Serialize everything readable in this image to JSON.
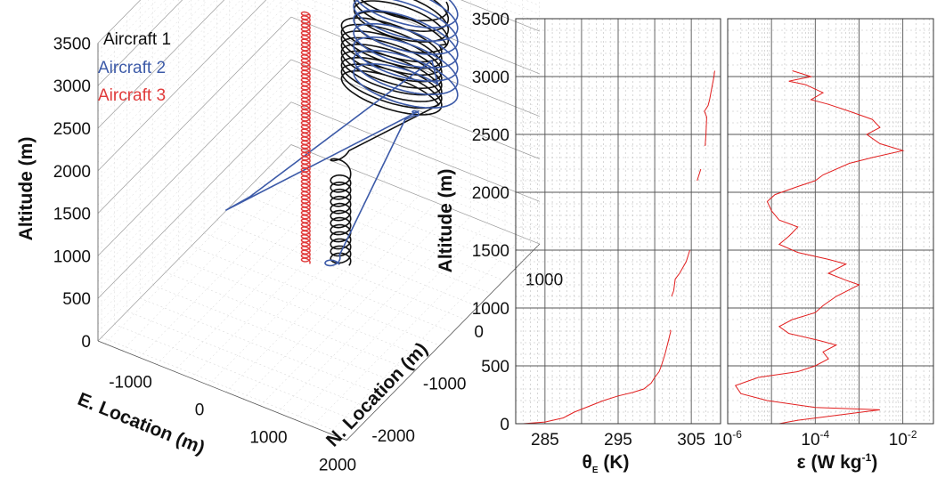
{
  "colors": {
    "aircraft1": "#111111",
    "aircraft2": "#3c5aa8",
    "aircraft3": "#e03a3a",
    "profile_line": "#e21f1f",
    "grid_major": "#555555",
    "grid_minor": "#bdbdbd"
  },
  "chart_data": [
    {
      "type": "line",
      "projection": "3d",
      "zlabel": "Altitude (m)",
      "xlabel": "E. Location (m)",
      "ylabel": "N. Location (m)",
      "z_ticks": [
        "0",
        "500",
        "1000",
        "1500",
        "2000",
        "2500",
        "3000",
        "3500"
      ],
      "zlim": [
        0,
        3500
      ],
      "x_ticks": [
        "-1000",
        "0",
        "1000",
        "2000"
      ],
      "y_ticks": [
        "-2000",
        "-1000",
        "0",
        "1000"
      ],
      "legend": "top-left",
      "grid": true,
      "series": [
        {
          "name": "Aircraft 1",
          "color": "#111111",
          "altitude_range": [
            300,
            3150
          ],
          "pattern": "racetrack orbits, E. location about 0 to 1000 m"
        },
        {
          "name": "Aircraft 2",
          "color": "#3c5aa8",
          "altitude_range": [
            250,
            3050
          ],
          "pattern": "racetrack orbits and transit legs, reaching about 1300 m N."
        },
        {
          "name": "Aircraft 3",
          "color": "#e03a3a",
          "altitude_range": [
            280,
            3220
          ],
          "pattern": "tight helical spiral at fixed location"
        }
      ]
    },
    {
      "type": "line",
      "xlabel": "θE (K)",
      "ylabel": "Altitude (m)",
      "xlim": [
        281,
        309
      ],
      "ylim": [
        0,
        3500
      ],
      "x_ticks": [
        "285",
        "295",
        "305"
      ],
      "y_ticks": [
        "0",
        "500",
        "1000",
        "1500",
        "2000",
        "2500",
        "3000",
        "3500"
      ],
      "grid": true,
      "series": [
        {
          "name": "",
          "points": [
            [
              282.0,
              0
            ],
            [
              285.0,
              15
            ],
            [
              287.5,
              50
            ],
            [
              289.0,
              100
            ],
            [
              291.0,
              150
            ],
            [
              293.0,
              200
            ],
            [
              295.0,
              240
            ],
            [
              297.0,
              270
            ],
            [
              298.5,
              300
            ],
            [
              299.5,
              350
            ],
            [
              300.0,
              400
            ],
            [
              300.6,
              450
            ],
            [
              300.9,
              500
            ],
            [
              301.4,
              600
            ],
            [
              301.8,
              700
            ],
            [
              302.2,
              800
            ],
            [
              302.1,
              810
            ],
            [
              302.3,
              1100
            ],
            [
              302.6,
              1150
            ],
            [
              302.8,
              1250
            ],
            [
              303.4,
              1300
            ],
            [
              304.3,
              1400
            ],
            [
              304.8,
              1500
            ],
            [
              305.1,
              1700
            ],
            [
              305.4,
              1900
            ],
            [
              305.8,
              2100
            ],
            [
              306.3,
              2200
            ],
            [
              306.9,
              2400
            ],
            [
              307.0,
              2500
            ],
            [
              307.1,
              2650
            ],
            [
              306.8,
              2700
            ],
            [
              307.3,
              2750
            ],
            [
              307.5,
              2800
            ],
            [
              307.8,
              2900
            ],
            [
              308.1,
              3000
            ],
            [
              308.2,
              3050
            ]
          ]
        }
      ]
    },
    {
      "type": "line",
      "xlabel": "ε (W kg⁻¹)",
      "x_scale": "log",
      "xlim": [
        1e-06,
        0.05
      ],
      "x_ticks": [
        1e-06,
        0.0001,
        0.01
      ],
      "ylim": [
        0,
        3500
      ],
      "grid": true,
      "series": [
        {
          "name": "",
          "points": [
            [
              1.5e-05,
              0
            ],
            [
              4e-05,
              30
            ],
            [
              0.003,
              120
            ],
            [
              0.0001,
              140
            ],
            [
              8e-06,
              200
            ],
            [
              2e-06,
              260
            ],
            [
              1.5e-06,
              330
            ],
            [
              5e-06,
              400
            ],
            [
              4e-05,
              450
            ],
            [
              0.0001,
              500
            ],
            [
              0.0002,
              560
            ],
            [
              0.00015,
              620
            ],
            [
              0.0003,
              680
            ],
            [
              0.00012,
              720
            ],
            [
              2.5e-05,
              780
            ],
            [
              1.5e-05,
              840
            ],
            [
              3e-05,
              900
            ],
            [
              0.0001,
              960
            ],
            [
              0.00015,
              1020
            ],
            [
              0.0003,
              1100
            ],
            [
              0.001,
              1200
            ],
            [
              0.0005,
              1240
            ],
            [
              0.0002,
              1300
            ],
            [
              0.0005,
              1380
            ],
            [
              0.0002,
              1420
            ],
            [
              4e-05,
              1480
            ],
            [
              1.5e-05,
              1550
            ],
            [
              2.5e-05,
              1620
            ],
            [
              4e-05,
              1700
            ],
            [
              1.5e-05,
              1760
            ],
            [
              1e-05,
              1840
            ],
            [
              8e-06,
              1920
            ],
            [
              1.2e-05,
              1980
            ],
            [
              4e-05,
              2050
            ],
            [
              0.0001,
              2100
            ],
            [
              0.00015,
              2150
            ],
            [
              0.0006,
              2250
            ],
            [
              0.002,
              2300
            ],
            [
              0.01,
              2360
            ],
            [
              0.003,
              2420
            ],
            [
              0.0015,
              2500
            ],
            [
              0.003,
              2560
            ],
            [
              0.002,
              2630
            ],
            [
              0.0006,
              2700
            ],
            [
              0.0002,
              2760
            ],
            [
              8e-05,
              2800
            ],
            [
              0.00015,
              2860
            ],
            [
              6e-05,
              2930
            ],
            [
              2.5e-05,
              2960
            ],
            [
              8e-05,
              3000
            ],
            [
              3e-05,
              3050
            ]
          ]
        }
      ]
    }
  ]
}
